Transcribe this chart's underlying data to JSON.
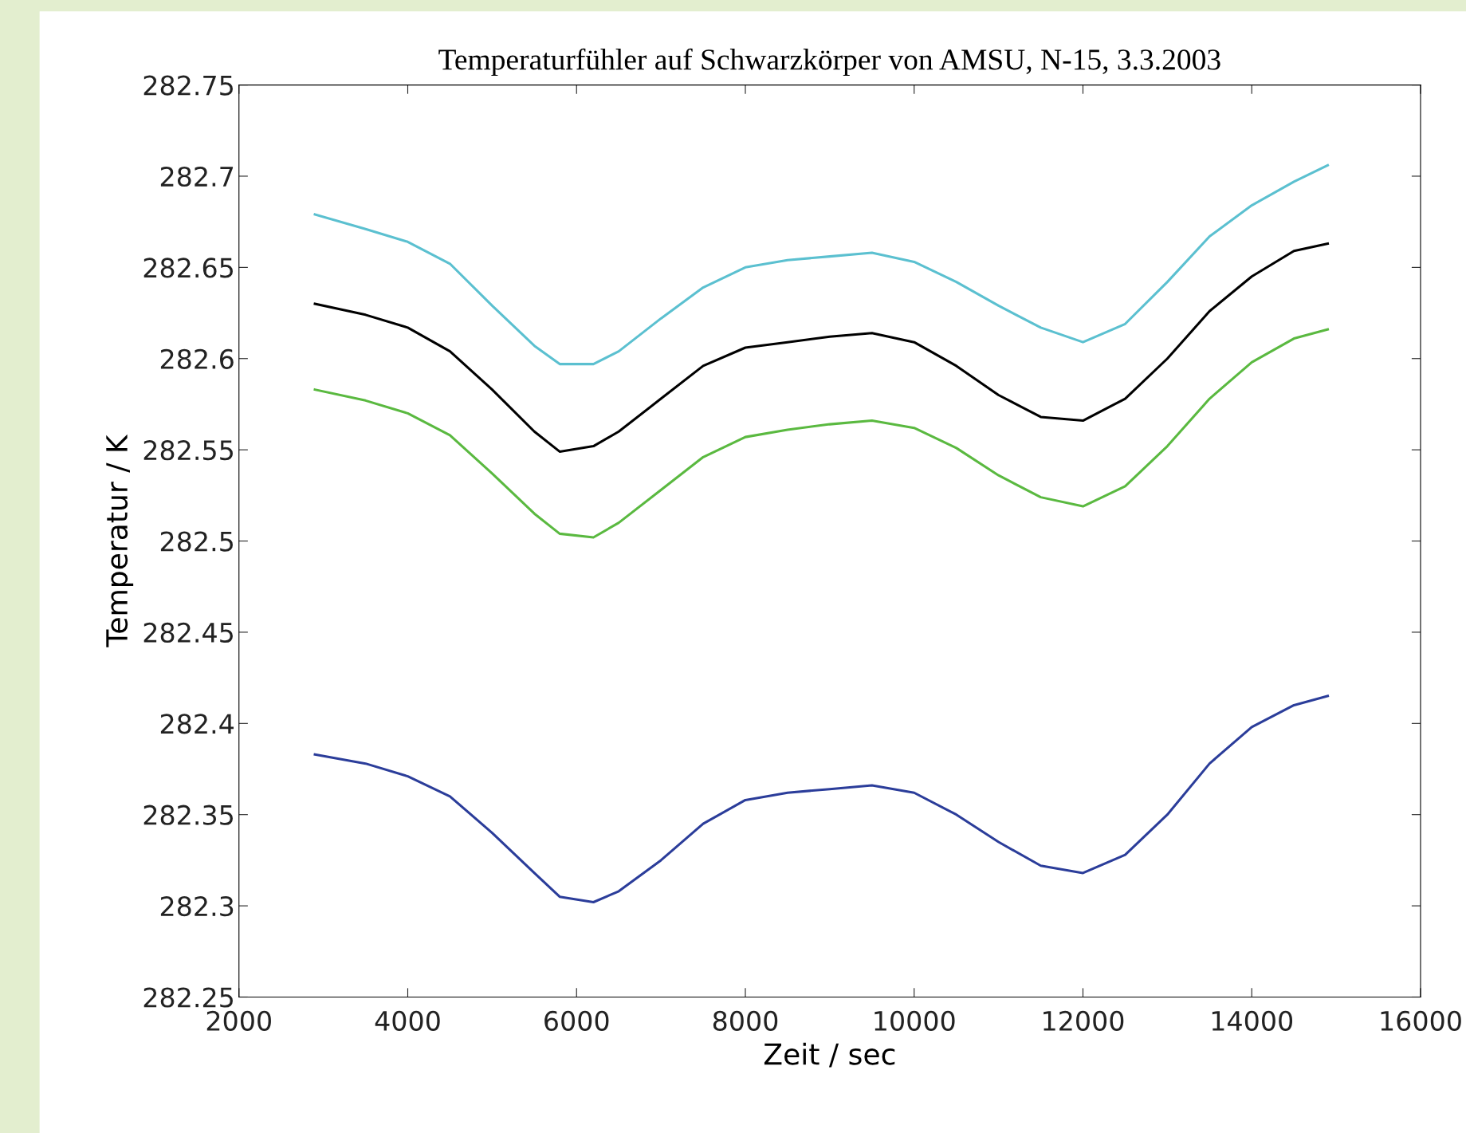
{
  "chart_data": {
    "type": "line",
    "title": "Temperaturfühler auf Schwarzkörper von AMSU, N-15, 3.3.2003",
    "xlabel": "Zeit / sec",
    "ylabel": "Temperatur / K",
    "x": [
      2900,
      3500,
      4000,
      4500,
      5000,
      5500,
      5800,
      6200,
      6500,
      7000,
      7500,
      8000,
      8500,
      9000,
      9500,
      10000,
      10500,
      11000,
      11500,
      12000,
      12500,
      13000,
      13500,
      14000,
      14500,
      14900
    ],
    "series": [
      {
        "color": "#5bc0d0",
        "values": [
          282.679,
          282.671,
          282.664,
          282.652,
          282.629,
          282.607,
          282.597,
          282.597,
          282.604,
          282.622,
          282.639,
          282.65,
          282.654,
          282.656,
          282.658,
          282.653,
          282.642,
          282.629,
          282.617,
          282.609,
          282.619,
          282.642,
          282.667,
          282.684,
          282.697,
          282.706
        ]
      },
      {
        "color": "#000000",
        "values": [
          282.63,
          282.624,
          282.617,
          282.604,
          282.583,
          282.56,
          282.549,
          282.552,
          282.56,
          282.578,
          282.596,
          282.606,
          282.609,
          282.612,
          282.614,
          282.609,
          282.596,
          282.58,
          282.568,
          282.566,
          282.578,
          282.6,
          282.626,
          282.645,
          282.659,
          282.663
        ]
      },
      {
        "color": "#5ab940",
        "values": [
          282.583,
          282.577,
          282.57,
          282.558,
          282.537,
          282.515,
          282.504,
          282.502,
          282.51,
          282.528,
          282.546,
          282.557,
          282.561,
          282.564,
          282.566,
          282.562,
          282.551,
          282.536,
          282.524,
          282.519,
          282.53,
          282.552,
          282.578,
          282.598,
          282.611,
          282.616
        ]
      },
      {
        "color": "#2b3d9a",
        "values": [
          282.383,
          282.378,
          282.371,
          282.36,
          282.34,
          282.318,
          282.305,
          282.302,
          282.308,
          282.325,
          282.345,
          282.358,
          282.362,
          282.364,
          282.366,
          282.362,
          282.35,
          282.335,
          282.322,
          282.318,
          282.328,
          282.35,
          282.378,
          282.398,
          282.41,
          282.415
        ]
      }
    ],
    "xlim": [
      2000,
      16000
    ],
    "xticks": [
      2000,
      4000,
      6000,
      8000,
      10000,
      12000,
      14000,
      16000
    ],
    "ylim": [
      282.25,
      282.75
    ],
    "yticks": [
      282.25,
      282.3,
      282.35,
      282.4,
      282.45,
      282.5,
      282.55,
      282.6,
      282.65,
      282.7,
      282.75
    ],
    "grid": false,
    "legend": false,
    "marker": "none",
    "line_style": "solid"
  }
}
